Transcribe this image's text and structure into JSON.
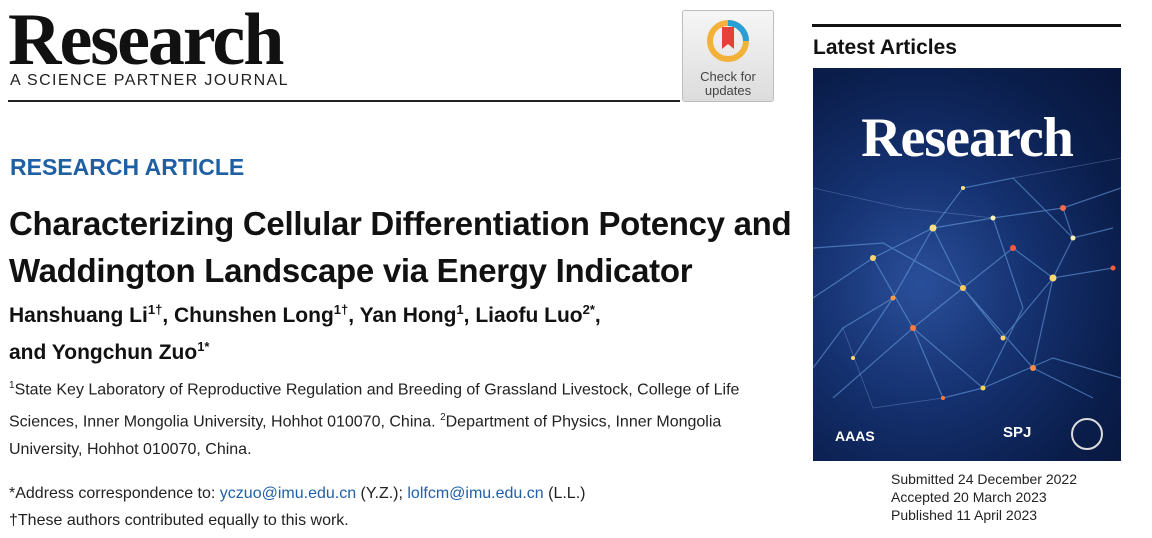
{
  "masthead": {
    "journal_title": "Research",
    "journal_subtitle": "A SCIENCE PARTNER JOURNAL",
    "check_updates_line1": "Check for",
    "check_updates_line2": "updates"
  },
  "article": {
    "type": "RESEARCH ARTICLE",
    "title": "Characterizing Cellular Differentiation Potency and Waddington Landscape via Energy Indicator",
    "authors": [
      {
        "name": "Hanshuang Li",
        "sup": "1†",
        "sep": ", "
      },
      {
        "name": "Chunshen Long",
        "sup": "1†",
        "sep": ", "
      },
      {
        "name": "Yan Hong",
        "sup": "1",
        "sep": ", "
      },
      {
        "name": "Liaofu Luo",
        "sup": "2*",
        "sep": ","
      },
      {
        "name": "and Yongchun Zuo",
        "sup": "1*",
        "sep": ""
      }
    ],
    "affiliations": {
      "sup1": "1",
      "aff1": "State Key Laboratory of Reproductive Regulation and Breeding of Grassland Livestock, College of Life Sciences, Inner Mongolia University, Hohhot 010070, China. ",
      "sup2": "2",
      "aff2": "Department of Physics, Inner Mongolia University, Hohhot 010070, China."
    },
    "correspondence": {
      "prefix": "*Address correspondence to: ",
      "email1": "yczuo@imu.edu.cn",
      "mid": " (Y.Z.); ",
      "email2": "lolfcm@imu.edu.cn",
      "suffix": " (L.L.)"
    },
    "equal_contribution": "†These authors contributed equally to this work."
  },
  "sidebar": {
    "heading": "Latest Articles",
    "cover_title": "Research",
    "cover_publisher": "AAAS",
    "cover_spj": "SPJ",
    "dates": {
      "submitted": "Submitted 24 December 2022",
      "accepted": "Accepted 20 March 2023",
      "published": "Published 11 April 2023"
    }
  },
  "colors": {
    "accent_blue": "#1f5fa3",
    "link_blue": "#2060a8",
    "cover_bg": "#0a1d4a"
  }
}
